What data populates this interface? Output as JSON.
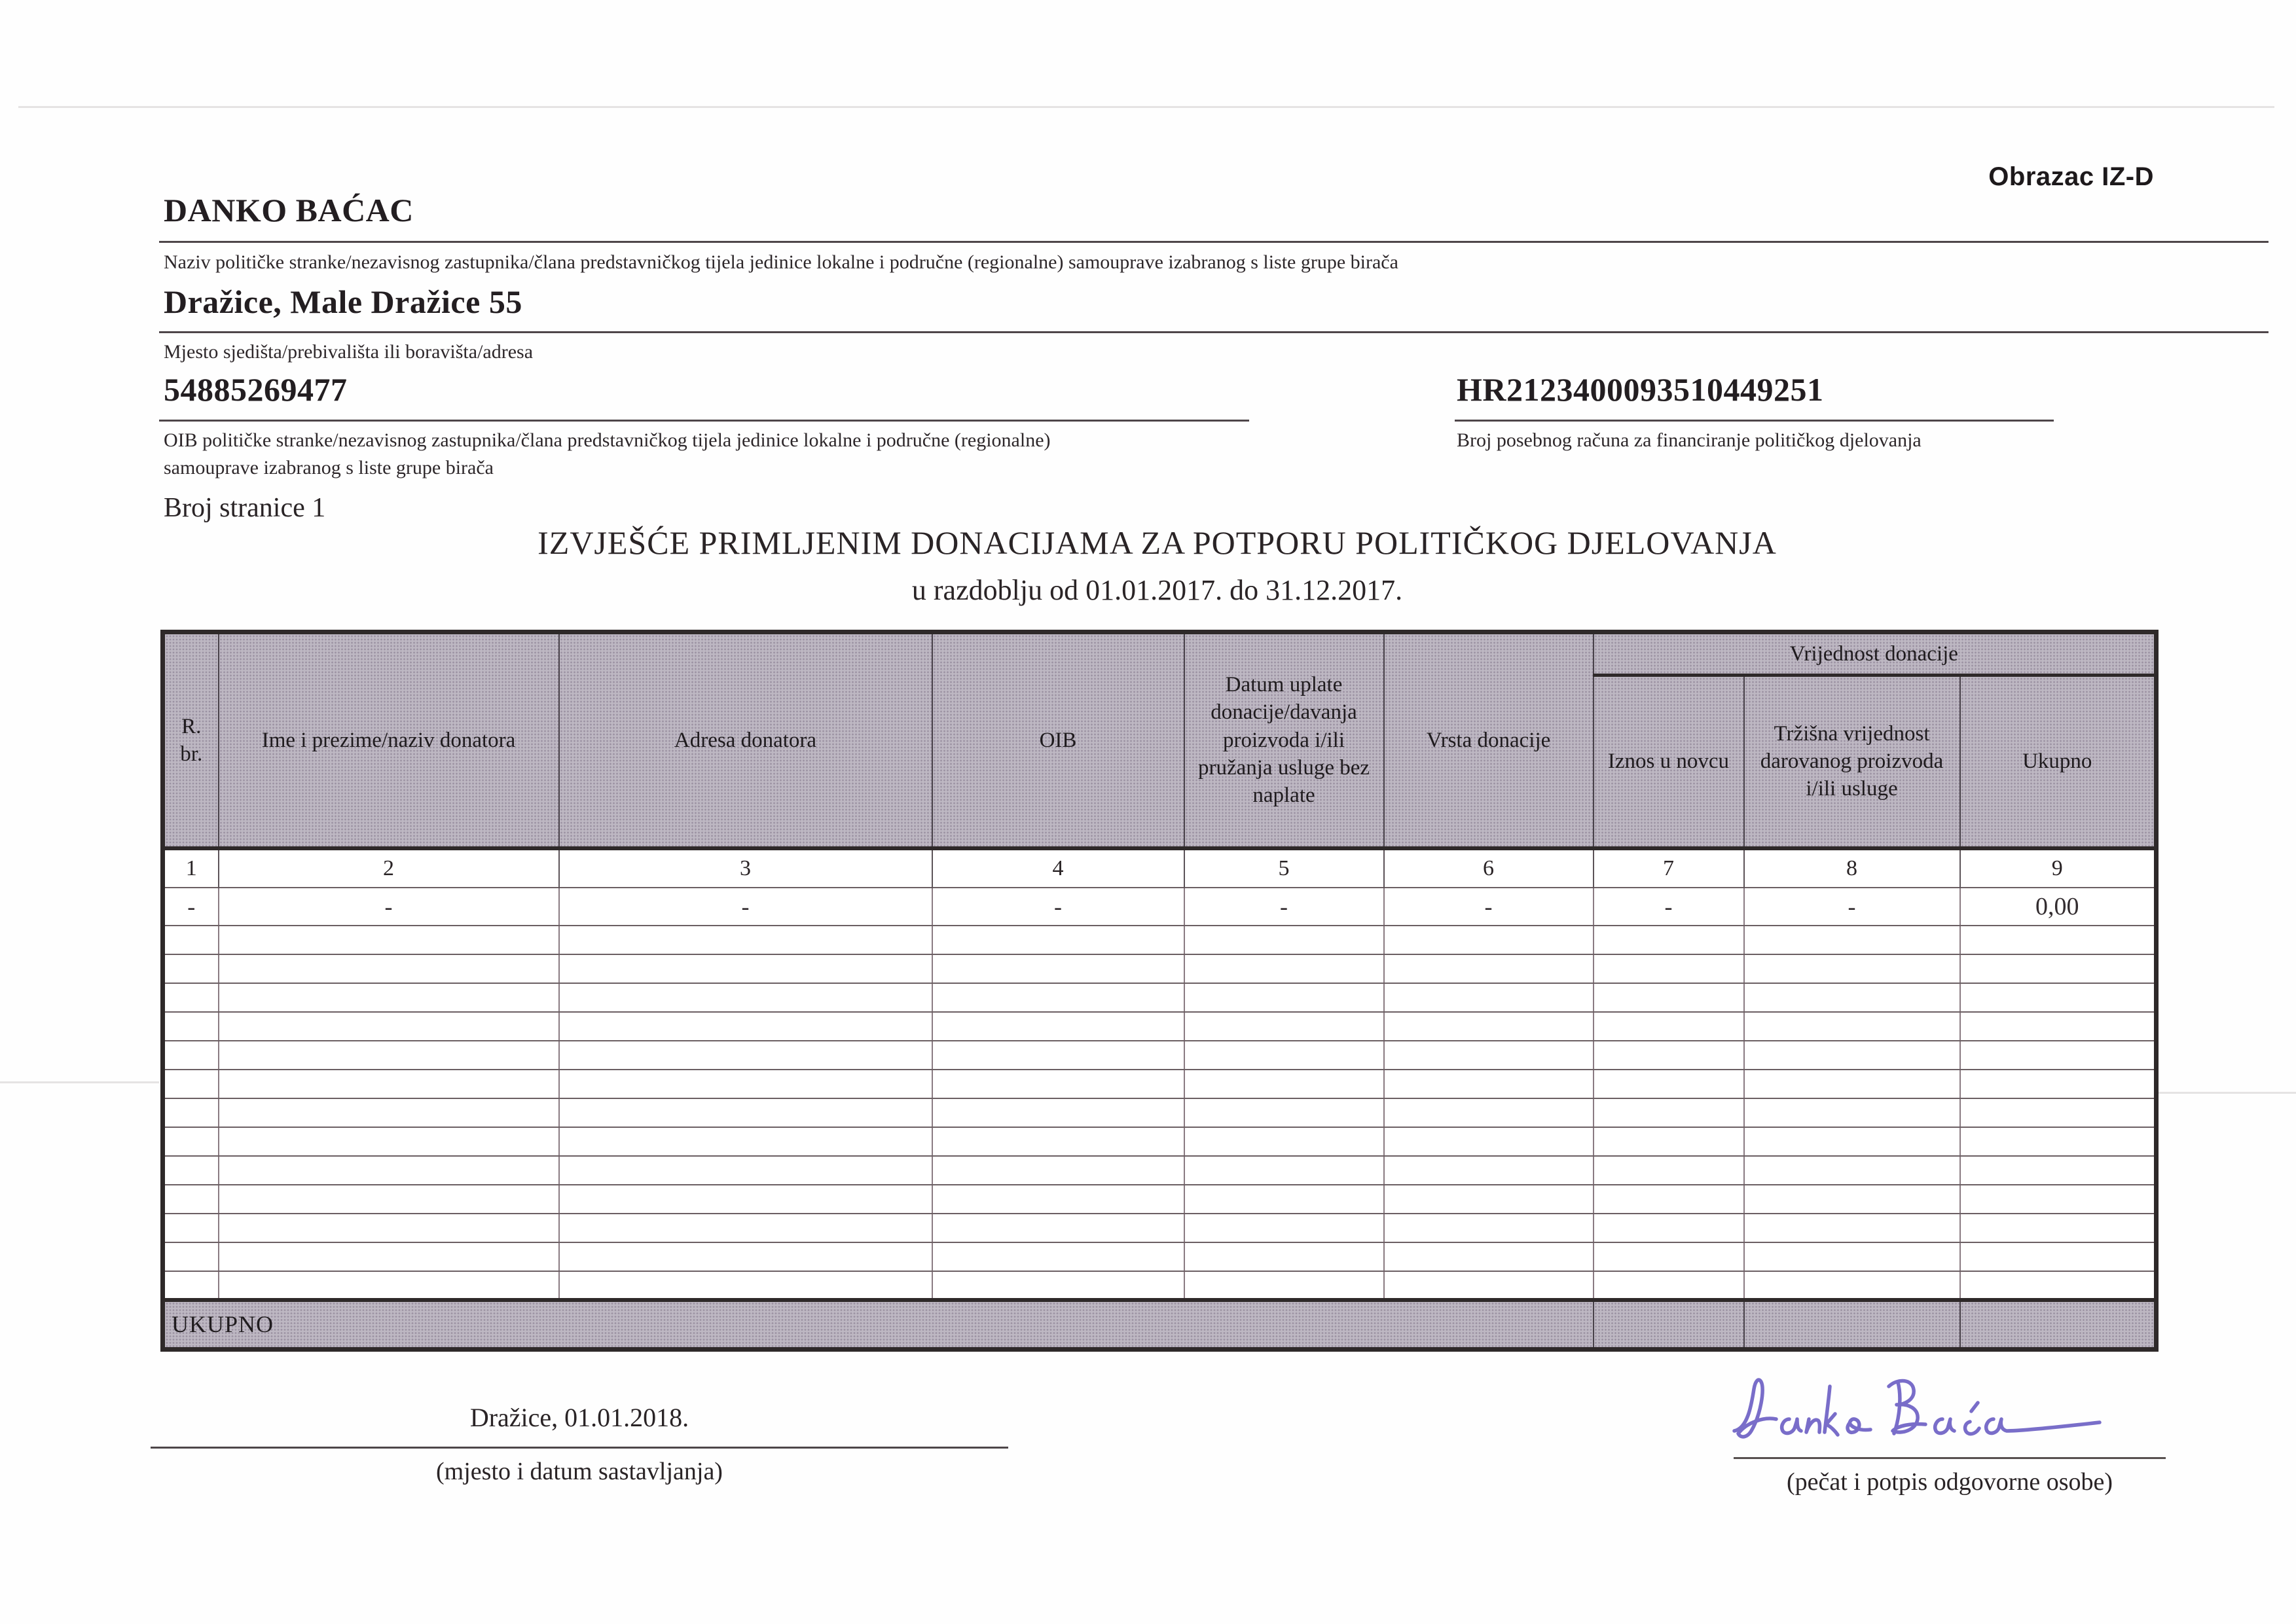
{
  "form": {
    "form_code": "Obrazac IZ-D",
    "subject_name": "DANKO BAĆAC",
    "subject_name_label": "Naziv političke stranke/nezavisnog zastupnika/člana predstavničkog tijela jedinice lokalne i područne (regionalne) samouprave izabranog s liste grupe birača",
    "address": "Dražice, Male Dražice 55",
    "address_label": "Mjesto sjedišta/prebivališta ili boravišta/adresa",
    "oib": "54885269477",
    "oib_label_line1": "OIB političke stranke/nezavisnog zastupnika/člana predstavničkog tijela jedinice lokalne i područne (regionalne)",
    "oib_label_line2": "samouprave izabranog s liste grupe birača",
    "account_number": "HR2123400093510449251",
    "account_label": "Broj posebnog računa za financiranje političkog djelovanja",
    "page_number": "Broj stranice 1",
    "title": "IZVJEŠĆE PRIMLJENIM DONACIJAMA ZA POTPORU POLITIČKOG DJELOVANJA",
    "subtitle": "u razdoblju od 01.01.2017. do 31.12.2017."
  },
  "table": {
    "headers": {
      "rbr": "R. br.",
      "donor_name": "Ime i prezime/naziv donatora",
      "donor_address": "Adresa donatora",
      "oib": "OIB",
      "payment_date": "Datum uplate donacije/davanja proizvoda i/ili pružanja usluge bez naplate",
      "donation_type": "Vrsta donacije",
      "value_group": "Vrijednost donacije",
      "amount_in_money": "Iznos u novcu",
      "market_value": "Tržišna vrijednost darovanog proizvoda i/ili usluge",
      "total": "Ukupno"
    },
    "column_numbers": [
      "1",
      "2",
      "3",
      "4",
      "5",
      "6",
      "7",
      "8",
      "9"
    ],
    "data_rows": [
      [
        "-",
        "-",
        "-",
        "-",
        "-",
        "-",
        "-",
        "-",
        "0,00"
      ]
    ],
    "empty_row_count": 13,
    "total_row_label": "UKUPNO"
  },
  "footer": {
    "place_date": "Dražice, 01.01.2018.",
    "place_date_caption": "(mjesto i datum sastavljanja)",
    "signature_name": "Danko Baćac",
    "signature_caption": "(pečat i potpis odgovorne osobe)"
  },
  "colors": {
    "header_background": "#bdb7c2",
    "table_border": "#2e2929",
    "signature_ink": "#675ac2"
  }
}
